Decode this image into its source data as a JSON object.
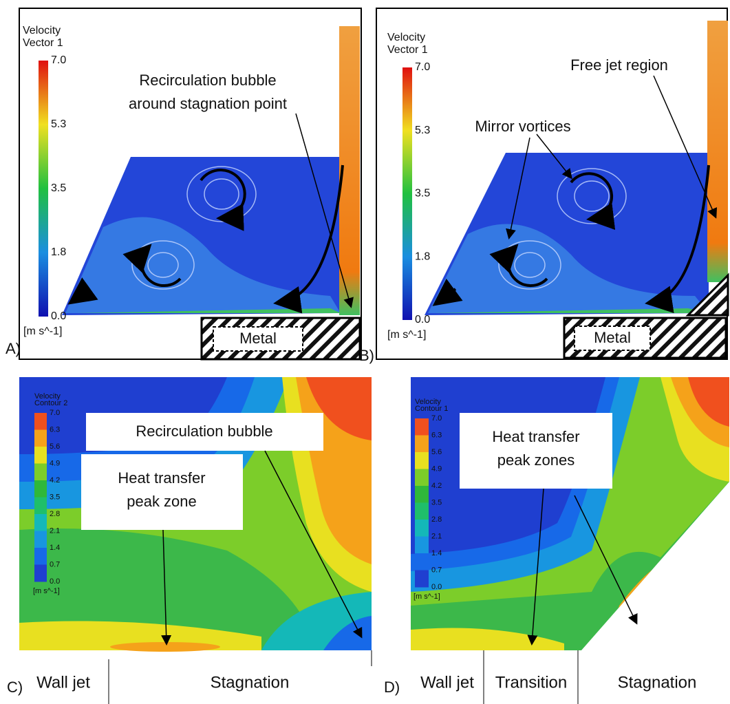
{
  "panels": [
    {
      "label": "A)",
      "legend": {
        "title": "Velocity",
        "subtitle": "Vector 1",
        "ticks": [
          "7.0",
          "5.3",
          "3.5",
          "1.8",
          "0.0"
        ],
        "unit": "[m s^-1]"
      },
      "annotation": [
        "Recirculation bubble",
        "around stagnation point"
      ],
      "metal": "Metal"
    },
    {
      "label": "B)",
      "legend": {
        "title": "Velocity",
        "subtitle": "Vector 1",
        "ticks": [
          "7.0",
          "5.3",
          "3.5",
          "1.8",
          "0.0"
        ],
        "unit": "[m s^-1]"
      },
      "annotations": [
        "Free jet region",
        "Mirror vortices"
      ],
      "metal": "Metal"
    },
    {
      "label": "C)",
      "legend": {
        "title": "Velocity",
        "subtitle": "Contour 2",
        "ticks": [
          "7.0",
          "6.3",
          "5.6",
          "4.9",
          "4.2",
          "3.5",
          "2.8",
          "2.1",
          "1.4",
          "0.7",
          "0.0"
        ],
        "unit": "[m s^-1]"
      },
      "annotations": [
        [
          "Recirculation bubble"
        ],
        [
          "Heat transfer",
          "peak zone"
        ]
      ],
      "regions": [
        "Wall jet",
        "Stagnation"
      ]
    },
    {
      "label": "D)",
      "legend": {
        "title": "Velocity",
        "subtitle": "Contour 1",
        "ticks": [
          "7.0",
          "6.3",
          "5.6",
          "4.9",
          "4.2",
          "3.5",
          "2.8",
          "2.1",
          "1.4",
          "0.7",
          "0.0"
        ],
        "unit": "[m s^-1]"
      },
      "annotations": [
        [
          "Heat transfer",
          "peak zones"
        ]
      ],
      "regions": [
        "Wall jet",
        "Transition",
        "Stagnation"
      ]
    }
  ]
}
